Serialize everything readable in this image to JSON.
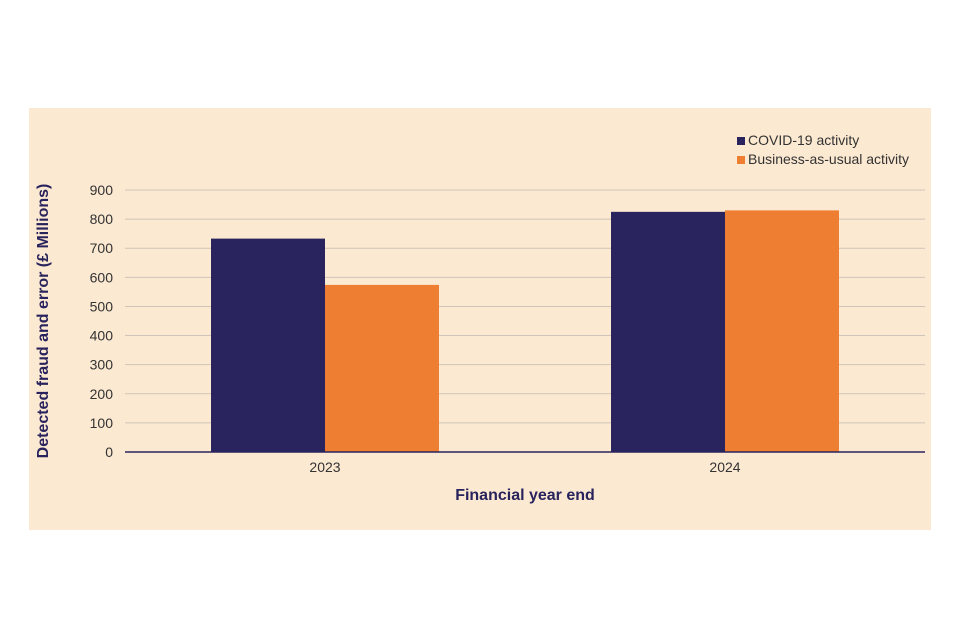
{
  "chart_data": {
    "type": "bar",
    "categories": [
      "2023",
      "2024"
    ],
    "series": [
      {
        "name": "COVID-19 activity",
        "values": [
          733,
          825
        ],
        "color": "#29245e"
      },
      {
        "name": "Business-as-usual activity",
        "values": [
          574,
          830
        ],
        "color": "#ee7e31"
      }
    ],
    "xlabel": "Financial year end",
    "ylabel": "Detected fraud and error (£ Millions)",
    "ylim": [
      0,
      900
    ],
    "yticks": [
      "0",
      "100",
      "200",
      "300",
      "400",
      "500",
      "600",
      "700",
      "800",
      "900"
    ],
    "grid": true,
    "legend": "top-right",
    "background": "#fce9d2",
    "gridline_color": "#cfc4b8",
    "axis_color": "#29245e"
  }
}
